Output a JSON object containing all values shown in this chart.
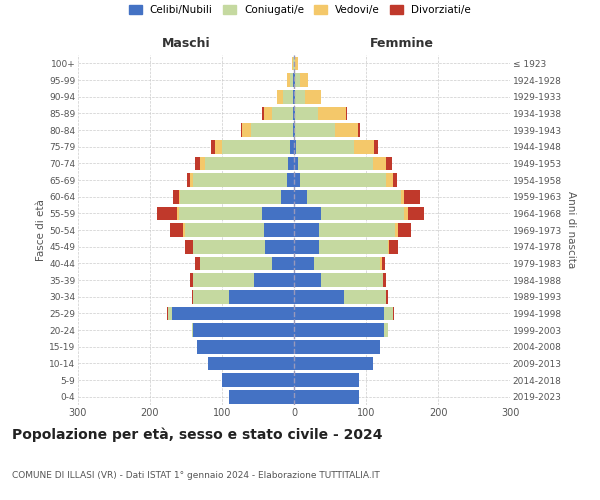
{
  "age_groups": [
    "0-4",
    "5-9",
    "10-14",
    "15-19",
    "20-24",
    "25-29",
    "30-34",
    "35-39",
    "40-44",
    "45-49",
    "50-54",
    "55-59",
    "60-64",
    "65-69",
    "70-74",
    "75-79",
    "80-84",
    "85-89",
    "90-94",
    "95-99",
    "100+"
  ],
  "birth_years": [
    "2019-2023",
    "2014-2018",
    "2009-2013",
    "2004-2008",
    "1999-2003",
    "1994-1998",
    "1989-1993",
    "1984-1988",
    "1979-1983",
    "1974-1978",
    "1969-1973",
    "1964-1968",
    "1959-1963",
    "1954-1958",
    "1949-1953",
    "1944-1948",
    "1939-1943",
    "1934-1938",
    "1929-1933",
    "1924-1928",
    "≤ 1923"
  ],
  "males": {
    "celibi": [
      90,
      100,
      120,
      135,
      140,
      170,
      90,
      55,
      30,
      40,
      42,
      45,
      18,
      10,
      8,
      5,
      2,
      2,
      1,
      1,
      0
    ],
    "coniugati": [
      0,
      0,
      0,
      0,
      2,
      5,
      50,
      85,
      100,
      100,
      110,
      115,
      140,
      130,
      115,
      95,
      58,
      28,
      14,
      5,
      1
    ],
    "vedovi": [
      0,
      0,
      0,
      0,
      0,
      0,
      0,
      0,
      0,
      0,
      2,
      2,
      2,
      4,
      7,
      10,
      12,
      12,
      8,
      4,
      2
    ],
    "divorziati": [
      0,
      0,
      0,
      0,
      0,
      2,
      2,
      5,
      8,
      12,
      18,
      28,
      8,
      5,
      8,
      5,
      2,
      2,
      0,
      0,
      0
    ]
  },
  "females": {
    "nubili": [
      90,
      90,
      110,
      120,
      125,
      125,
      70,
      38,
      28,
      35,
      35,
      38,
      18,
      8,
      5,
      3,
      2,
      2,
      1,
      1,
      0
    ],
    "coniugate": [
      0,
      0,
      0,
      0,
      5,
      12,
      58,
      85,
      92,
      95,
      105,
      115,
      130,
      120,
      105,
      80,
      55,
      32,
      14,
      7,
      2
    ],
    "vedove": [
      0,
      0,
      0,
      0,
      0,
      0,
      0,
      0,
      2,
      2,
      5,
      5,
      5,
      10,
      18,
      28,
      32,
      38,
      22,
      12,
      4
    ],
    "divorziate": [
      0,
      0,
      0,
      0,
      0,
      2,
      2,
      5,
      5,
      12,
      18,
      22,
      22,
      5,
      8,
      5,
      2,
      2,
      0,
      0,
      0
    ]
  },
  "colors": {
    "celibi_nubili": "#4472c4",
    "coniugati": "#c5d9a0",
    "vedovi": "#f4c86a",
    "divorziati": "#c0392b"
  },
  "title": "Popolazione per età, sesso e stato civile - 2024",
  "subtitle": "COMUNE DI ILLASI (VR) - Dati ISTAT 1° gennaio 2024 - Elaborazione TUTTITALIA.IT",
  "xlabel_left": "Maschi",
  "xlabel_right": "Femmine",
  "ylabel_left": "Fasce di età",
  "ylabel_right": "Anni di nascita",
  "xlim": 300,
  "background_color": "#ffffff",
  "grid_color": "#cccccc",
  "legend_labels": [
    "Celibi/Nubili",
    "Coniugati/e",
    "Vedovi/e",
    "Divorziati/e"
  ]
}
